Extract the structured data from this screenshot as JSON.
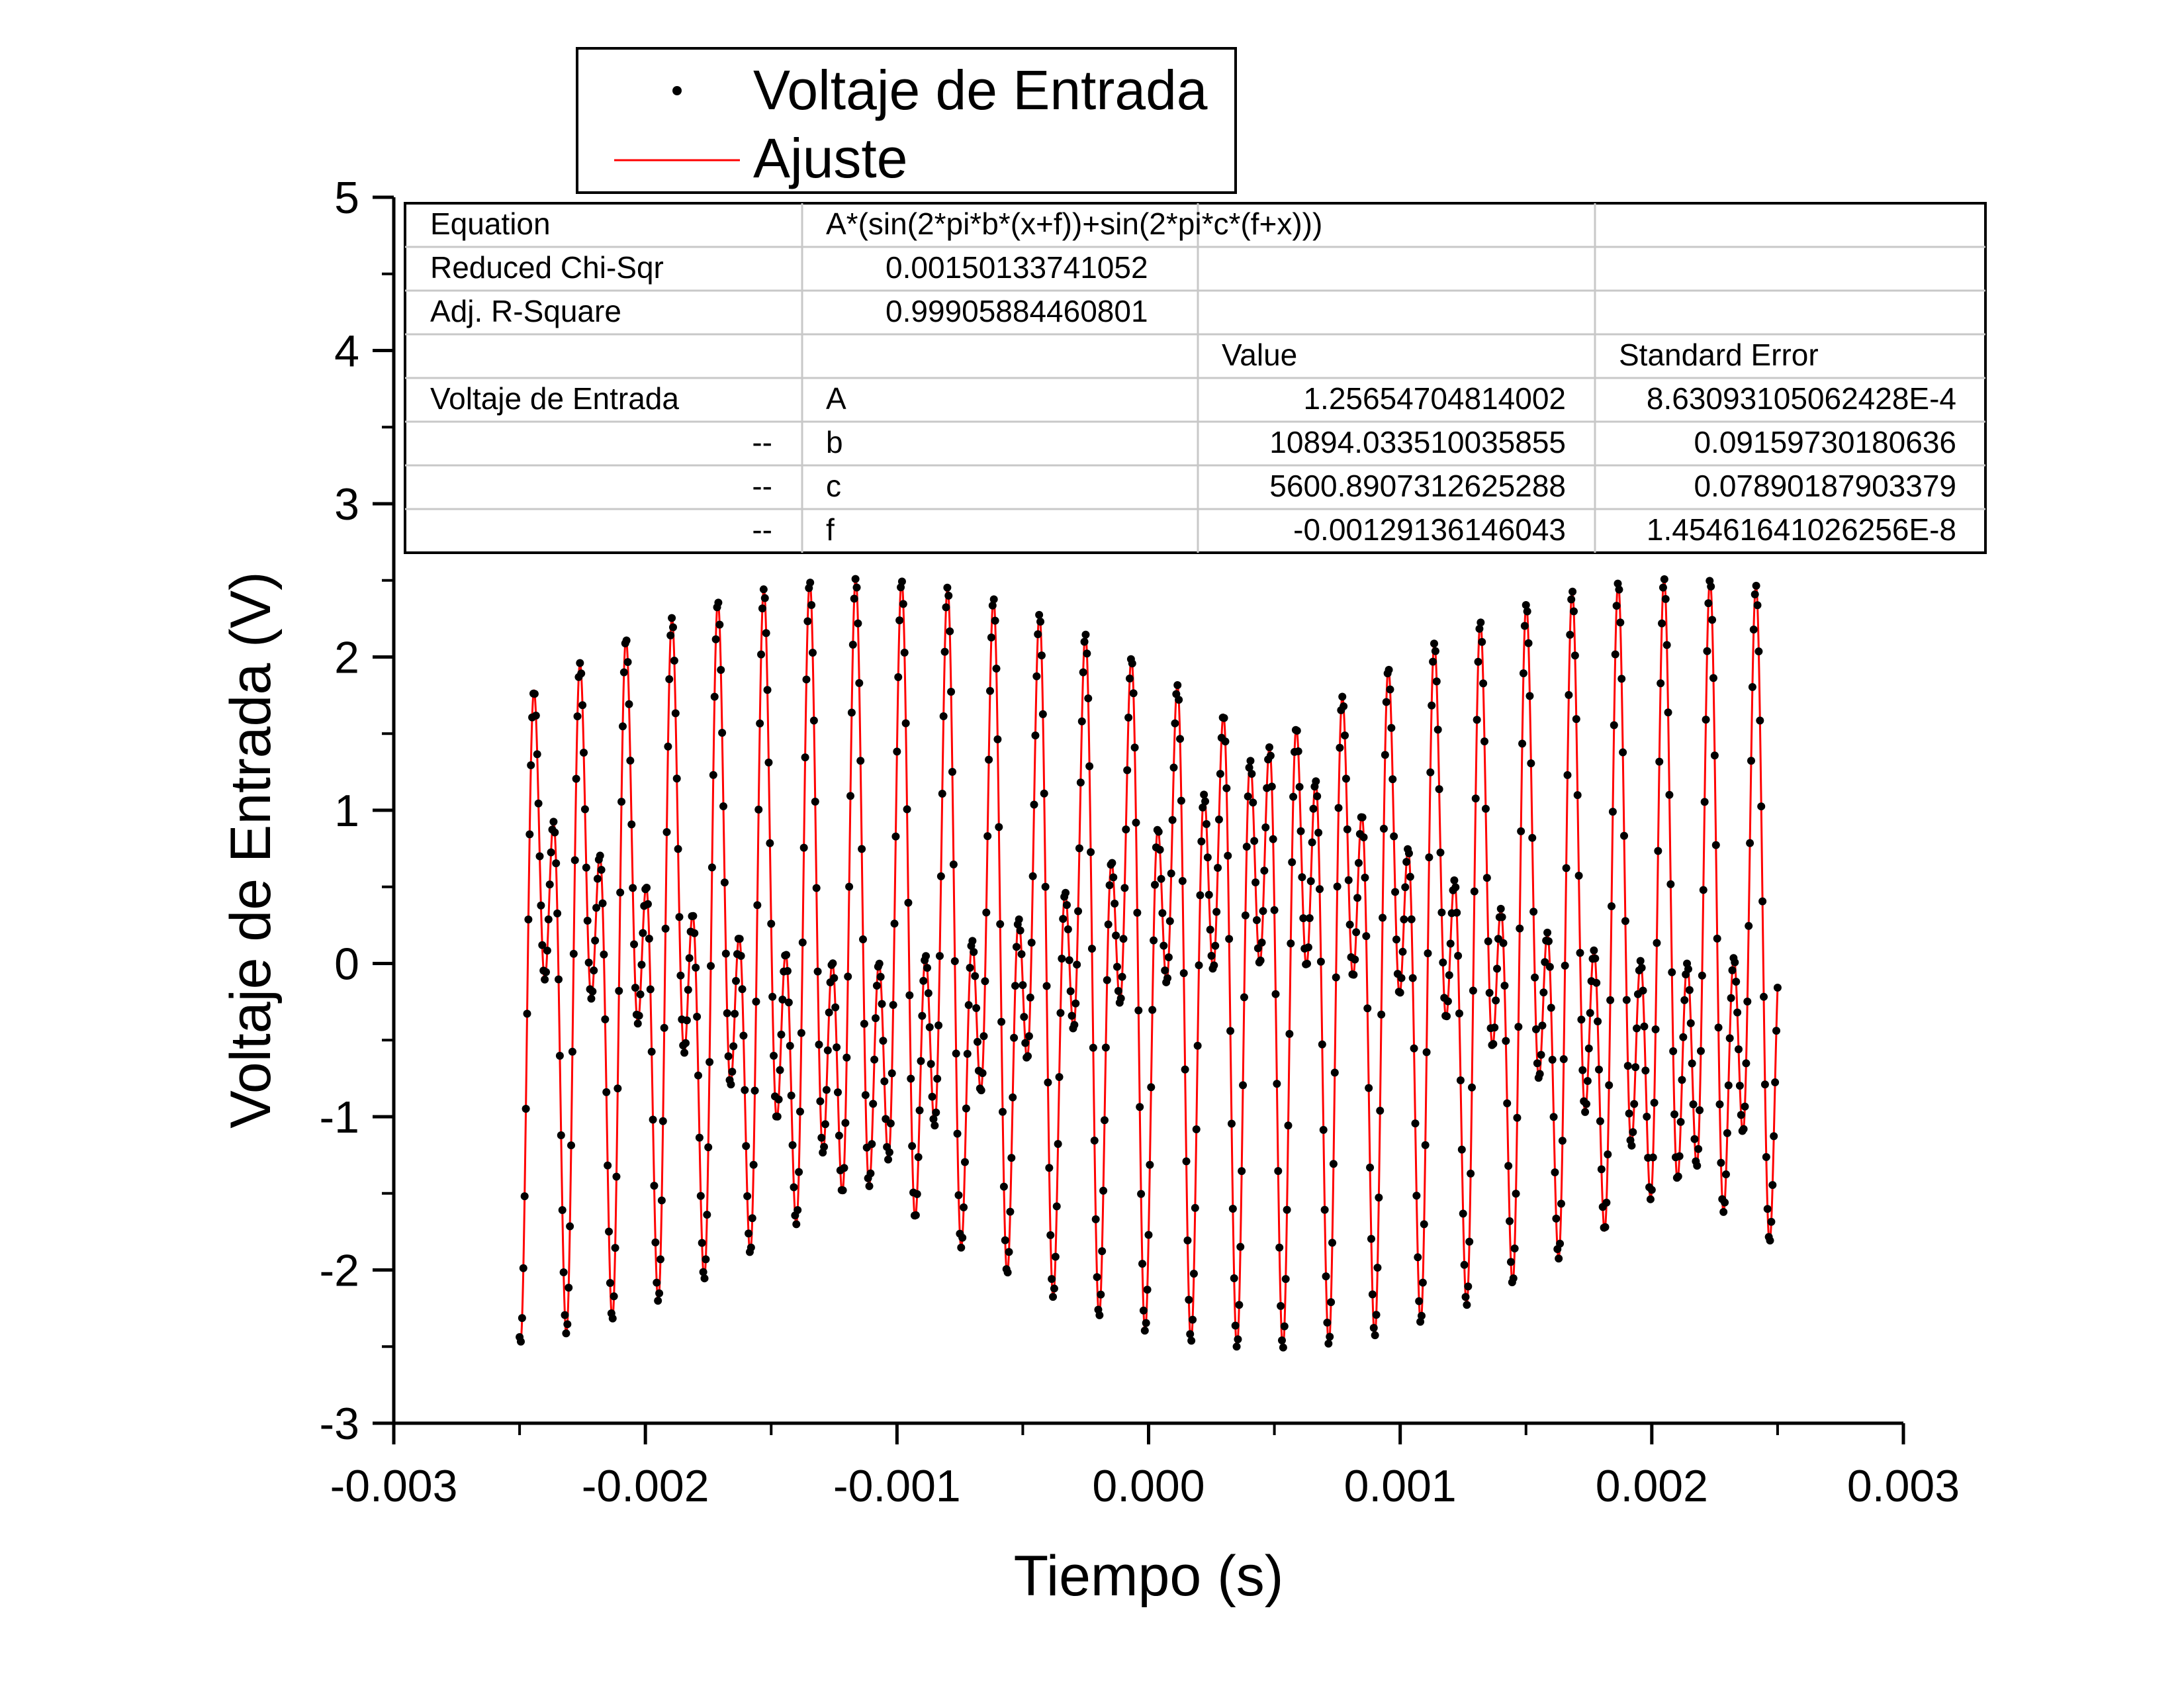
{
  "chart_data": {
    "type": "scatter",
    "xlabel": "Tiempo (s)",
    "ylabel": "Voltaje de Entrada (V)",
    "xlim": [
      -0.003,
      0.003
    ],
    "ylim": [
      -3,
      5
    ],
    "x_ticks": [
      "-0.003",
      "-0.002",
      "-0.001",
      "0.000",
      "0.001",
      "0.002",
      "0.003"
    ],
    "y_ticks": [
      "-3",
      "-2",
      "-1",
      "0",
      "1",
      "2",
      "3",
      "4",
      "5"
    ],
    "legend": {
      "position": "top",
      "entries": [
        {
          "name": "Voltaje de Entrada",
          "marker": "dot",
          "color": "#000000"
        },
        {
          "name": "Ajuste",
          "marker": "line",
          "color": "#ff0000"
        }
      ]
    },
    "series": [
      {
        "name": "Voltaje de Entrada",
        "kind": "points",
        "x_start": -0.0025,
        "x_end": 0.0025,
        "x_step": 5e-06,
        "color": "#000000"
      },
      {
        "name": "Ajuste",
        "kind": "fit-line",
        "model": "A*(sin(2*pi*b*(x+f))+sin(2*pi*c*(f+x)))",
        "params": {
          "A": 1.25654704814002,
          "b": 10894.033510035855,
          "c": 5600.890731262529,
          "f": -0.00129136146043
        },
        "color": "#ff0000"
      }
    ],
    "fit_table": {
      "rows": [
        [
          "Equation",
          "A*(sin(2*pi*b*(x+f))+sin(2*pi*c*(f+x)))",
          "",
          ""
        ],
        [
          "Reduced Chi-Sqr",
          "0.00150133741052",
          "",
          ""
        ],
        [
          "Adj. R-Square",
          "0.99905884460801",
          "",
          ""
        ],
        [
          "",
          "",
          "Value",
          "Standard Error"
        ],
        [
          "Voltaje de Entrada",
          "A",
          "1.25654704814002",
          "8.63093105062428E-4"
        ],
        [
          "--",
          "b",
          "10894.033510035855",
          "0.09159730180636"
        ],
        [
          "--",
          "c",
          "5600.8907312625288",
          "0.07890187903379"
        ],
        [
          "--",
          "f",
          "-0.00129136146043",
          "1.45461641026256E-8"
        ]
      ]
    }
  }
}
